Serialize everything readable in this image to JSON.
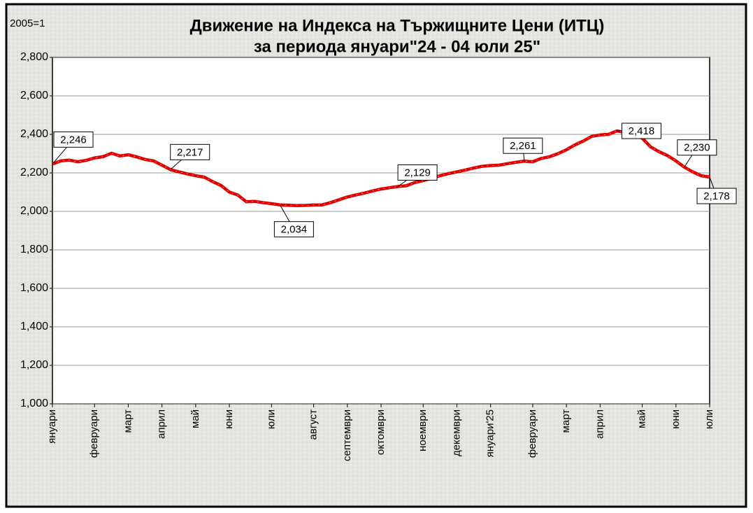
{
  "chart_data": {
    "type": "line",
    "title": "Движение на Индекса на Тържищните Цени (ИТЦ)",
    "subtitle": "за периода януари\"24 - 04 юли 25\"",
    "note": "2005=1",
    "categories": [
      "януари",
      null,
      null,
      null,
      null,
      "февруари",
      null,
      null,
      null,
      "март",
      null,
      null,
      null,
      "април",
      null,
      null,
      null,
      "май",
      null,
      null,
      null,
      "юни",
      null,
      null,
      null,
      null,
      "юли",
      null,
      null,
      null,
      null,
      "август",
      null,
      null,
      null,
      "септември",
      null,
      null,
      null,
      "октомври",
      null,
      null,
      null,
      null,
      "ноември",
      null,
      null,
      null,
      "декември",
      null,
      null,
      null,
      "януари'25",
      null,
      null,
      null,
      null,
      "февруари",
      null,
      null,
      null,
      "март",
      null,
      null,
      null,
      "април",
      null,
      null,
      null,
      null,
      "май",
      null,
      null,
      null,
      "юни",
      null,
      null,
      null,
      "юли"
    ],
    "series": [
      {
        "name": "ИТЦ",
        "color": "#e00000",
        "values": [
          2246,
          2262,
          2266,
          2258,
          2265,
          2278,
          2284,
          2302,
          2288,
          2294,
          2283,
          2270,
          2262,
          2240,
          2217,
          2205,
          2195,
          2185,
          2178,
          2155,
          2135,
          2100,
          2085,
          2050,
          2052,
          2045,
          2040,
          2034,
          2032,
          2030,
          2031,
          2033,
          2034,
          2045,
          2060,
          2075,
          2085,
          2095,
          2106,
          2116,
          2123,
          2129,
          2133,
          2150,
          2160,
          2172,
          2185,
          2196,
          2205,
          2215,
          2225,
          2234,
          2238,
          2240,
          2248,
          2255,
          2261,
          2258,
          2275,
          2284,
          2300,
          2320,
          2345,
          2365,
          2390,
          2397,
          2400,
          2418,
          2410,
          2400,
          2380,
          2335,
          2310,
          2290,
          2262,
          2230,
          2205,
          2185,
          2178
        ],
        "value_labels": [
          "2,246",
          null,
          null,
          null,
          null,
          null,
          null,
          null,
          null,
          null,
          null,
          null,
          null,
          null,
          "2,217",
          null,
          null,
          null,
          null,
          null,
          null,
          null,
          null,
          null,
          null,
          null,
          null,
          "2,034",
          null,
          null,
          null,
          null,
          null,
          null,
          null,
          null,
          null,
          null,
          null,
          null,
          null,
          "2,129",
          null,
          null,
          null,
          null,
          null,
          null,
          null,
          null,
          null,
          null,
          null,
          null,
          null,
          null,
          "2,261",
          null,
          null,
          null,
          null,
          null,
          null,
          null,
          null,
          null,
          null,
          "2,418",
          null,
          null,
          null,
          null,
          null,
          null,
          null,
          "2,230",
          null,
          null,
          "2,178"
        ]
      }
    ],
    "ylim": [
      1000,
      2800
    ],
    "yticks": [
      {
        "value": 1000,
        "label": "1,000"
      },
      {
        "value": 1200,
        "label": "1,200"
      },
      {
        "value": 1400,
        "label": "1,400"
      },
      {
        "value": 1600,
        "label": "1,600"
      },
      {
        "value": 1800,
        "label": "1,800"
      },
      {
        "value": 2000,
        "label": "2,000"
      },
      {
        "value": 2200,
        "label": "2,200"
      },
      {
        "value": 2400,
        "label": "2,400"
      },
      {
        "value": 2600,
        "label": "2,600"
      },
      {
        "value": 2800,
        "label": "2,800"
      }
    ],
    "grid": true
  }
}
